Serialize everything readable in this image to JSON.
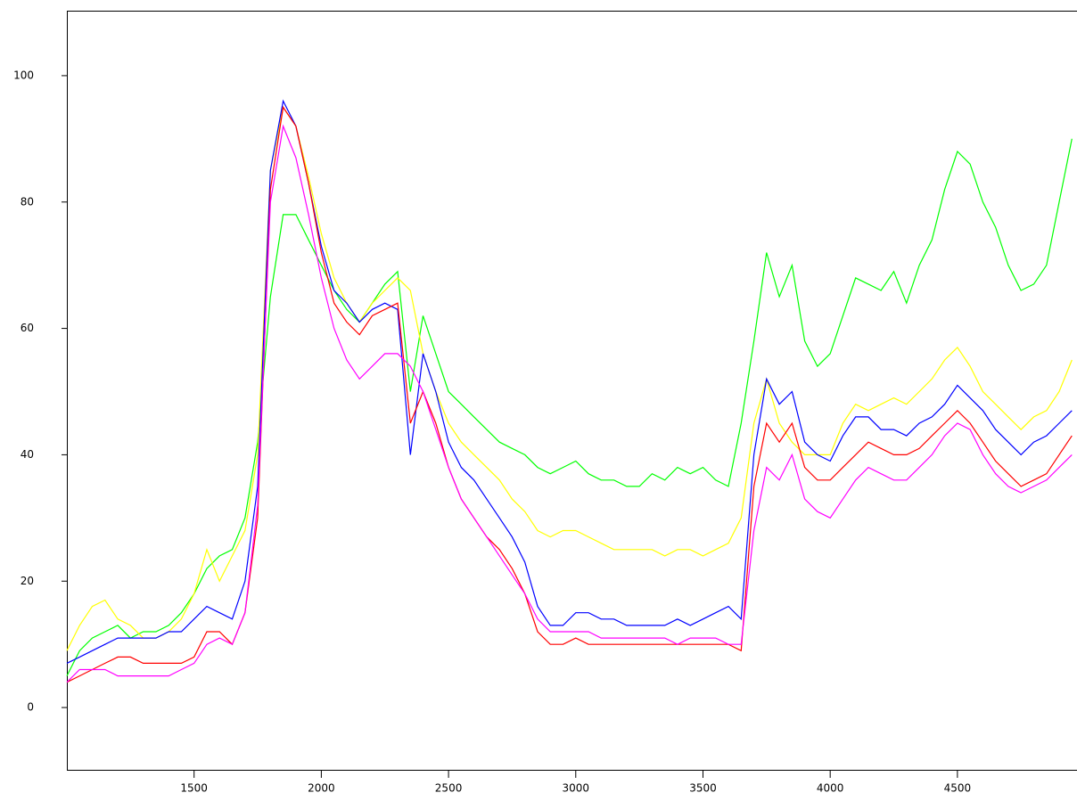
{
  "chart_data": {
    "type": "line",
    "xlim": [
      1000,
      4970
    ],
    "ylim": [
      -10,
      110
    ],
    "xticks": [
      1500,
      2000,
      2500,
      3000,
      3500,
      4000,
      4500
    ],
    "yticks": [
      0,
      20,
      40,
      60,
      80,
      100
    ],
    "x": [
      1000,
      1050,
      1100,
      1150,
      1200,
      1250,
      1300,
      1350,
      1400,
      1450,
      1500,
      1550,
      1600,
      1650,
      1700,
      1750,
      1800,
      1850,
      1900,
      1950,
      2000,
      2050,
      2100,
      2150,
      2200,
      2250,
      2300,
      2350,
      2400,
      2450,
      2500,
      2550,
      2600,
      2650,
      2700,
      2750,
      2800,
      2850,
      2900,
      2950,
      3000,
      3050,
      3100,
      3150,
      3200,
      3250,
      3300,
      3350,
      3400,
      3450,
      3500,
      3550,
      3600,
      3650,
      3700,
      3750,
      3800,
      3850,
      3900,
      3950,
      4000,
      4050,
      4100,
      4150,
      4200,
      4250,
      4300,
      4350,
      4400,
      4450,
      4500,
      4550,
      4600,
      4650,
      4700,
      4750,
      4800,
      4850,
      4900,
      4950
    ],
    "series": [
      {
        "color": "#00ff00",
        "values": [
          5,
          9,
          11,
          12,
          13,
          11,
          12,
          12,
          13,
          15,
          18,
          22,
          24,
          25,
          30,
          42,
          65,
          78,
          78,
          74,
          70,
          66,
          63,
          61,
          64,
          67,
          69,
          50,
          62,
          56,
          50,
          48,
          46,
          44,
          42,
          41,
          40,
          38,
          37,
          38,
          39,
          37,
          36,
          36,
          35,
          35,
          37,
          36,
          38,
          37,
          38,
          36,
          35,
          45,
          58,
          72,
          65,
          70,
          58,
          54,
          56,
          62,
          68,
          67,
          66,
          69,
          64,
          70,
          74,
          82,
          88,
          86,
          80,
          76,
          70,
          66,
          67,
          70,
          80,
          90
        ]
      },
      {
        "color": "#ffff00",
        "values": [
          9,
          13,
          16,
          17,
          14,
          13,
          11,
          11,
          12,
          14,
          18,
          25,
          20,
          24,
          28,
          40,
          85,
          95,
          92,
          84,
          75,
          68,
          64,
          61,
          64,
          66,
          68,
          66,
          56,
          50,
          45,
          42,
          40,
          38,
          36,
          33,
          31,
          28,
          27,
          28,
          28,
          27,
          26,
          25,
          25,
          25,
          25,
          24,
          25,
          25,
          24,
          25,
          26,
          30,
          45,
          52,
          45,
          42,
          40,
          40,
          40,
          45,
          48,
          47,
          48,
          49,
          48,
          50,
          52,
          55,
          57,
          54,
          50,
          48,
          46,
          44,
          46,
          47,
          50,
          55
        ]
      },
      {
        "color": "#0000ff",
        "values": [
          7,
          8,
          9,
          10,
          11,
          11,
          11,
          11,
          12,
          12,
          14,
          16,
          15,
          14,
          20,
          35,
          85,
          96,
          92,
          83,
          73,
          66,
          64,
          61,
          63,
          64,
          63,
          40,
          56,
          50,
          42,
          38,
          36,
          33,
          30,
          27,
          23,
          16,
          13,
          13,
          15,
          15,
          14,
          14,
          13,
          13,
          13,
          13,
          14,
          13,
          14,
          15,
          16,
          14,
          40,
          52,
          48,
          50,
          42,
          40,
          39,
          43,
          46,
          46,
          44,
          44,
          43,
          45,
          46,
          48,
          51,
          49,
          47,
          44,
          42,
          40,
          42,
          43,
          45,
          47
        ]
      },
      {
        "color": "#ff0000",
        "values": [
          4,
          5,
          6,
          7,
          8,
          8,
          7,
          7,
          7,
          7,
          8,
          12,
          12,
          10,
          15,
          30,
          82,
          95,
          92,
          83,
          72,
          64,
          61,
          59,
          62,
          63,
          64,
          45,
          50,
          45,
          38,
          33,
          30,
          27,
          25,
          22,
          18,
          12,
          10,
          10,
          11,
          10,
          10,
          10,
          10,
          10,
          10,
          10,
          10,
          10,
          10,
          10,
          10,
          9,
          35,
          45,
          42,
          45,
          38,
          36,
          36,
          38,
          40,
          42,
          41,
          40,
          40,
          41,
          43,
          45,
          47,
          45,
          42,
          39,
          37,
          35,
          36,
          37,
          40,
          43
        ]
      },
      {
        "color": "#ff00ff",
        "values": [
          4,
          6,
          6,
          6,
          5,
          5,
          5,
          5,
          5,
          6,
          7,
          10,
          11,
          10,
          15,
          32,
          80,
          92,
          87,
          78,
          68,
          60,
          55,
          52,
          54,
          56,
          56,
          54,
          50,
          44,
          38,
          33,
          30,
          27,
          24,
          21,
          18,
          14,
          12,
          12,
          12,
          12,
          11,
          11,
          11,
          11,
          11,
          11,
          10,
          11,
          11,
          11,
          10,
          10,
          28,
          38,
          36,
          40,
          33,
          31,
          30,
          33,
          36,
          38,
          37,
          36,
          36,
          38,
          40,
          43,
          45,
          44,
          40,
          37,
          35,
          34,
          35,
          36,
          38,
          40
        ]
      }
    ]
  }
}
